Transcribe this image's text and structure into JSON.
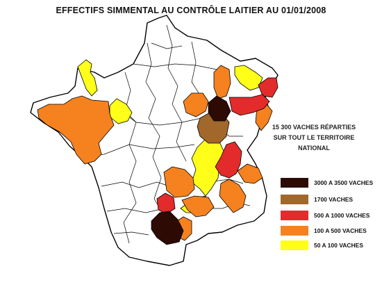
{
  "title": "EFFECTIFS SIMMENTAL AU CONTRÔLE LAITIER AU 01/01/2008",
  "note": {
    "line1": "15 300 VACHES RÉPARTIES",
    "line2": "SUR TOUT LE TERRITOIRE",
    "line3": "NATIONAL"
  },
  "colors": {
    "c3000": "#2e0a04",
    "c1700": "#a2672a",
    "c500": "#e32b2b",
    "c100": "#f5821f",
    "c50": "#ffff1a",
    "outline": "#000000",
    "base": "#ffffff"
  },
  "legend": [
    {
      "label": "3000 A 3500 VACHES",
      "color": "#2e0a04"
    },
    {
      "label": "1700 VACHES",
      "color": "#a2672a"
    },
    {
      "label": "500 A 1000 VACHES",
      "color": "#e32b2b"
    },
    {
      "label": "100 A 500 VACHES",
      "color": "#f5821f"
    },
    {
      "label": "50 A 100 VACHES",
      "color": "#ffff1a"
    }
  ]
}
